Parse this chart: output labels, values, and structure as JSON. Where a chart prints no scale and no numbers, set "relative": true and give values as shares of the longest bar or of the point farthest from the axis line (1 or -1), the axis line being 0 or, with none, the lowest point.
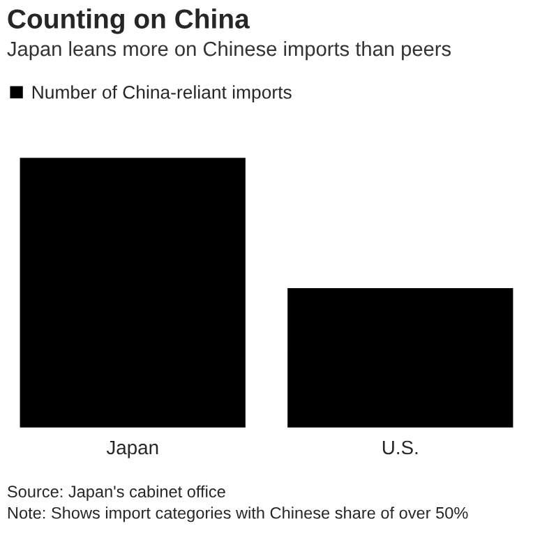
{
  "chart_data": {
    "type": "bar",
    "title": "Counting on China",
    "subtitle": "Japan leans more on Chinese imports than peers",
    "categories": [
      "Japan",
      "U.S."
    ],
    "series": [
      {
        "name": "Number of China-reliant imports",
        "color": "#000000",
        "values": [
          1,
          0.52
        ]
      }
    ],
    "relative": true,
    "legend": "top left",
    "grid": false,
    "annotations": [
      "Source: Japan's cabinet office",
      "Note: Shows import categories with Chinese share of over 50%"
    ]
  }
}
